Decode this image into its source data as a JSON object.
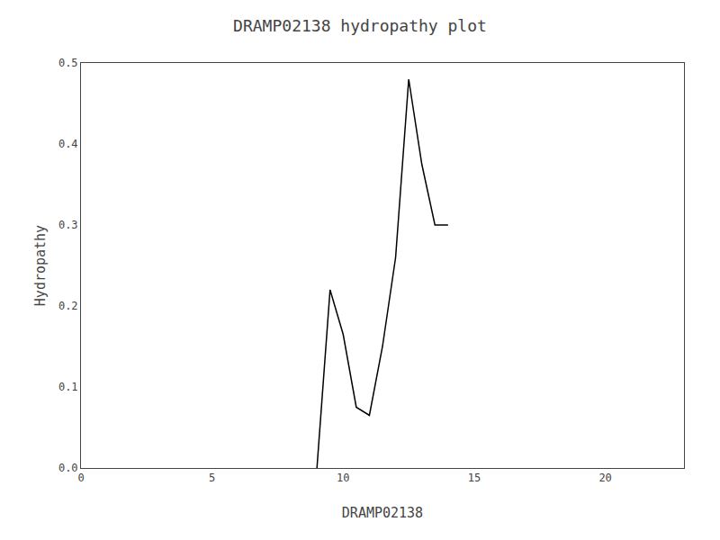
{
  "chart_data": {
    "type": "line",
    "title": "DRAMP02138 hydropathy plot",
    "xlabel": "DRAMP02138",
    "ylabel": "Hydropathy",
    "x": [
      9,
      9.5,
      10,
      10.5,
      11,
      11.5,
      12,
      12.5,
      13,
      13.5,
      14
    ],
    "values": [
      0.0,
      0.22,
      0.165,
      0.075,
      0.065,
      0.15,
      0.26,
      0.48,
      0.375,
      0.3,
      0.3
    ],
    "color": "#000000",
    "xlim": [
      0,
      23
    ],
    "xticks": [
      0,
      5,
      10,
      15,
      20
    ],
    "ylim": [
      0.0,
      0.5
    ],
    "yticks": [
      {
        "value": 0.0,
        "label": "0.0"
      },
      0.1,
      0.2,
      0.3,
      0.4,
      0.5
    ],
    "grid": false
  }
}
